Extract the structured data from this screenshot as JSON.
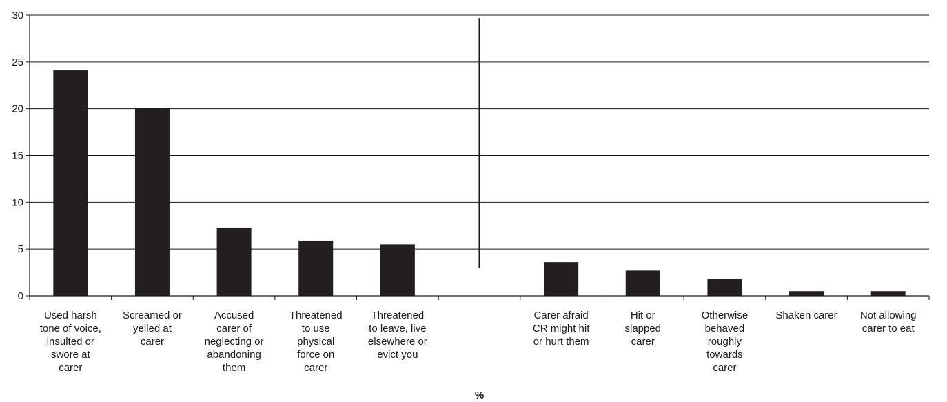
{
  "chart_data": {
    "type": "bar",
    "categories": [
      "Used harsh\ntone of voice,\ninsulted or\nswore at\ncarer",
      "Screamed or\nyelled at\ncarer",
      "Accused\ncarer of\nneglecting or\nabandoning\nthem",
      "Threatened\nto use\nphysical\nforce on\ncarer",
      "Threatened\nto leave, live\nelsewhere or\nevict you",
      "",
      "Carer afraid\nCR might hit\nor hurt them",
      "Hit or\nslapped\ncarer",
      "Otherwise\nbehaved\nroughly\ntowards\ncarer",
      "Shaken carer",
      "Not allowing\ncarer to eat"
    ],
    "values": [
      24.1,
      20.1,
      7.3,
      5.9,
      5.5,
      null,
      3.6,
      2.7,
      1.8,
      0.5,
      0.5
    ],
    "xlabel": "%",
    "ylabel": "",
    "ylim": [
      0,
      30
    ],
    "yticks": [
      0,
      5,
      10,
      15,
      20,
      25,
      30
    ],
    "grid": true,
    "bar_color": "#231f20",
    "divider_after_category": 5
  }
}
